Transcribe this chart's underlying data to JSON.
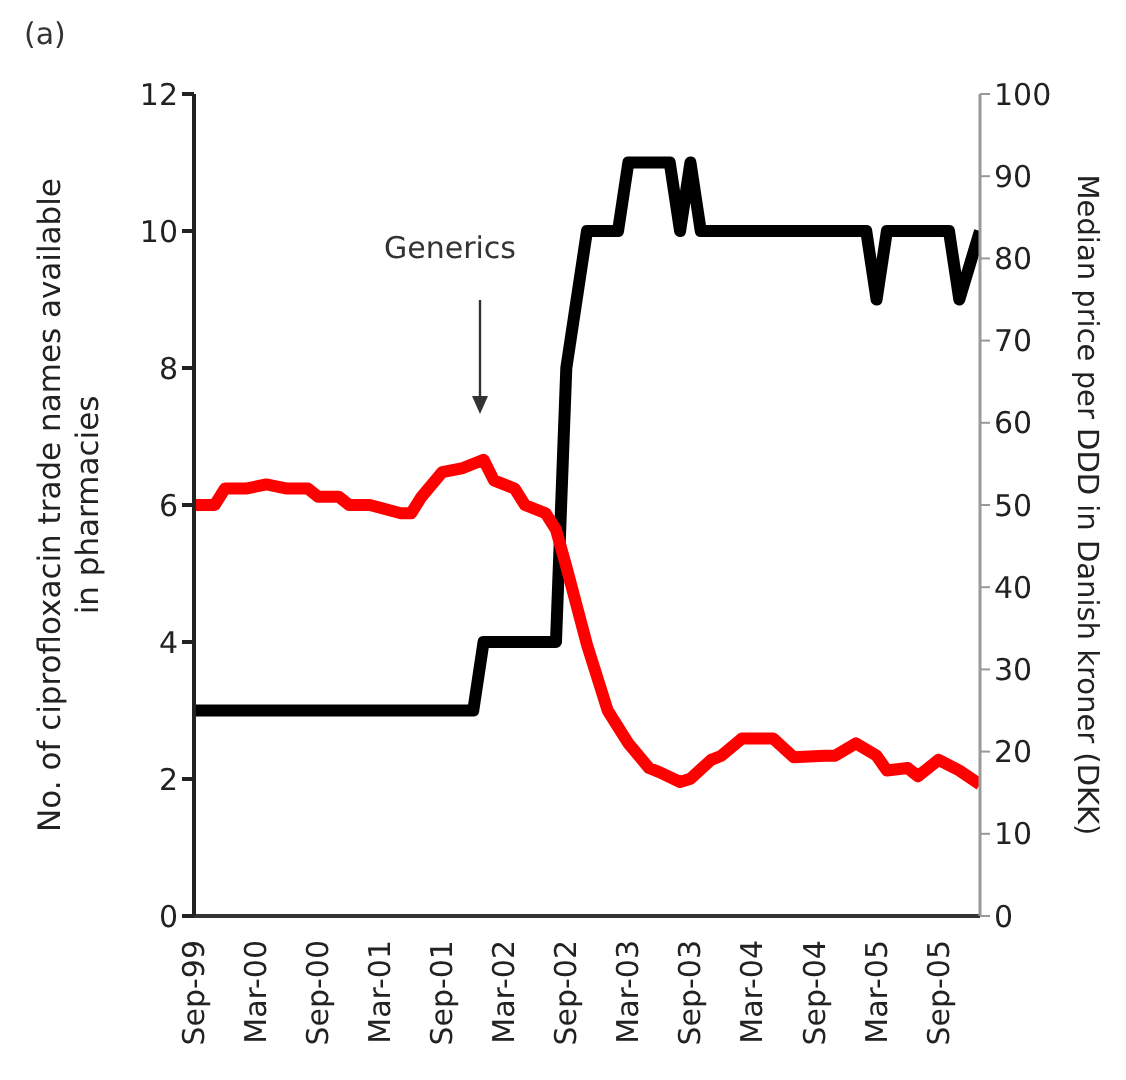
{
  "chart_data": {
    "type": "line",
    "ylabel": "No. of ciprofloxacin trade names available in pharmacies",
    "y2label": "Median price per DDD in Danish kroner (DKK)",
    "annotations": [
      "(a)",
      "Generics"
    ],
    "xlim": [
      "1999-09",
      "2006-01"
    ],
    "xticks": [
      {
        "value": "1999-09",
        "label": "Sep-99"
      },
      {
        "value": "2000-03",
        "label": "Mar-00"
      },
      {
        "value": "2000-09",
        "label": "Sep-00"
      },
      {
        "value": "2001-03",
        "label": "Mar-01"
      },
      {
        "value": "2001-09",
        "label": "Sep-01"
      },
      {
        "value": "2002-03",
        "label": "Mar-02"
      },
      {
        "value": "2002-09",
        "label": "Sep-02"
      },
      {
        "value": "2003-03",
        "label": "Mar-03"
      },
      {
        "value": "2003-09",
        "label": "Sep-03"
      },
      {
        "value": "2004-03",
        "label": "Mar-04"
      },
      {
        "value": "2004-09",
        "label": "Sep-04"
      },
      {
        "value": "2005-03",
        "label": "Mar-05"
      },
      {
        "value": "2005-09",
        "label": "Sep-05"
      }
    ],
    "ylim": [
      0,
      12
    ],
    "yticks": [
      0,
      2,
      4,
      6,
      8,
      10,
      12
    ],
    "y2lim": [
      0,
      100
    ],
    "y2ticks": [
      0,
      10,
      20,
      30,
      40,
      50,
      60,
      70,
      80,
      90,
      100
    ],
    "marker": "none",
    "line_style": "solid",
    "series": [
      {
        "color": "#000000",
        "x": [
          "1999-09",
          "2001-12",
          "2002-01",
          "2002-08",
          "2002-09",
          "2002-11",
          "2003-02",
          "2003-03",
          "2003-07",
          "2003-08",
          "2003-09",
          "2003-10",
          "2005-02",
          "2005-03",
          "2005-04",
          "2005-10",
          "2005-11",
          "2006-01"
        ],
        "values": [
          3,
          3,
          4,
          4,
          8,
          10,
          10,
          11,
          11,
          10,
          11,
          10,
          10,
          9,
          10,
          10,
          9,
          10
        ]
      },
      {
        "color": "#ff0000",
        "axis": "y2",
        "x": [
          "1999-09",
          "1999-11",
          "1999-12",
          "2000-02",
          "2000-04",
          "2000-06",
          "2000-08",
          "2000-09",
          "2000-11",
          "2000-12",
          "2001-02",
          "2001-05",
          "2001-06",
          "2001-07",
          "2001-09",
          "2001-11",
          "2002-01",
          "2002-02",
          "2002-04",
          "2002-05",
          "2002-07",
          "2002-08",
          "2002-09",
          "2002-11",
          "2003-01",
          "2003-02",
          "2003-03",
          "2003-05",
          "2003-06",
          "2003-08",
          "2003-09",
          "2003-11",
          "2003-12",
          "2004-02",
          "2004-05",
          "2004-07",
          "2004-10",
          "2004-11",
          "2005-01",
          "2005-03",
          "2005-04",
          "2005-06",
          "2005-07",
          "2005-09",
          "2005-11",
          "2006-01"
        ],
        "values": [
          50,
          50,
          52,
          52,
          52.5,
          52,
          52,
          51,
          51,
          50,
          50,
          49,
          49,
          51,
          54,
          54.5,
          55.5,
          53,
          52,
          50,
          49,
          47,
          42.5,
          33,
          25,
          23,
          21,
          18,
          17.5,
          16.3,
          16.7,
          19,
          19.5,
          21.6,
          21.6,
          19.3,
          19.5,
          19.5,
          21,
          19.5,
          17.7,
          18,
          17,
          19,
          17.7,
          16
        ]
      }
    ]
  }
}
